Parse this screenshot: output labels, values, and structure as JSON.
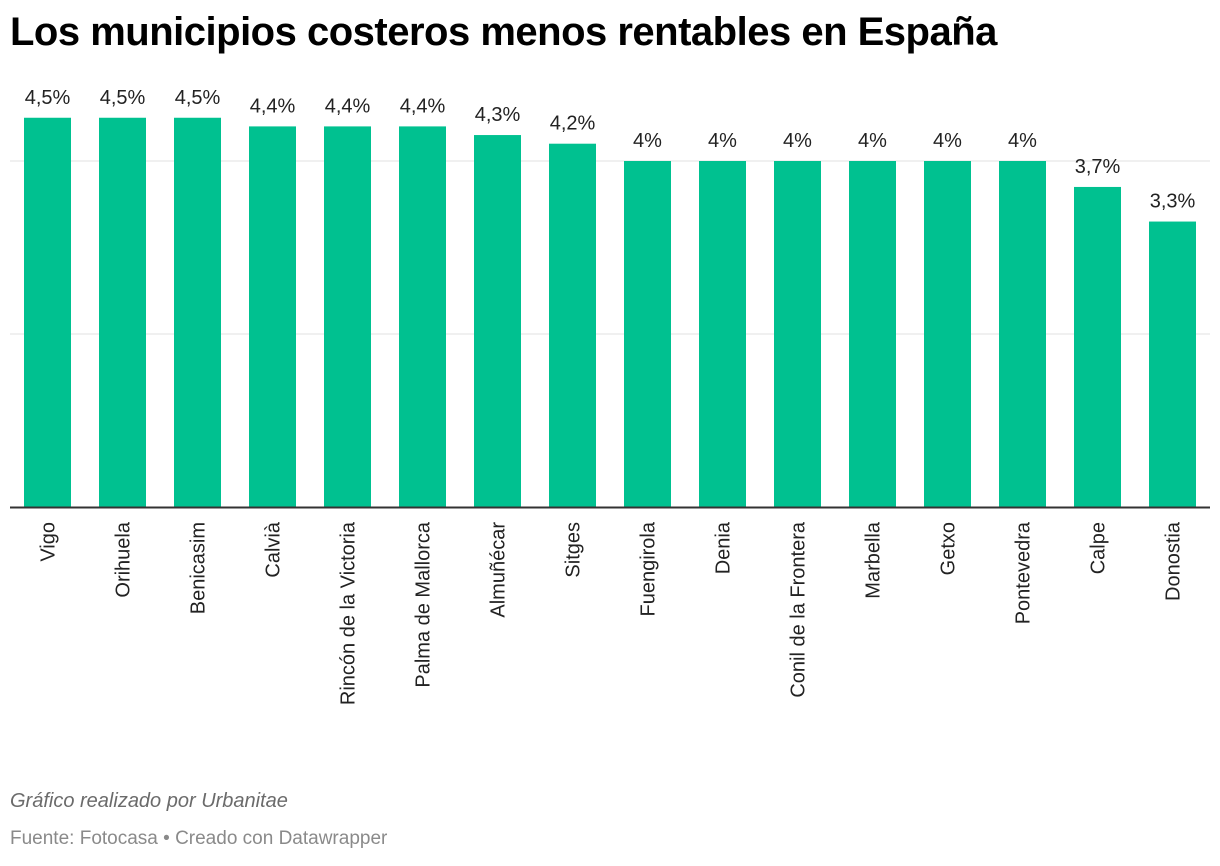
{
  "header": {
    "title": "Los municipios costeros menos rentables en España"
  },
  "chart_data": {
    "type": "bar",
    "categories": [
      "Vigo",
      "Orihuela",
      "Benicasim",
      "Calvià",
      "Rincón de la Victoria",
      "Palma de Mallorca",
      "Almuñécar",
      "Sitges",
      "Fuengirola",
      "Denia",
      "Conil de la Frontera",
      "Marbella",
      "Getxo",
      "Pontevedra",
      "Calpe",
      "Donostia"
    ],
    "values": [
      4.5,
      4.5,
      4.5,
      4.4,
      4.4,
      4.4,
      4.3,
      4.2,
      4.0,
      4.0,
      4.0,
      4.0,
      4.0,
      4.0,
      3.7,
      3.3
    ],
    "data_labels": [
      "4,5%",
      "4,5%",
      "4,5%",
      "4,4%",
      "4,4%",
      "4,4%",
      "4,3%",
      "4,2%",
      "4%",
      "4%",
      "4%",
      "4%",
      "4%",
      "4%",
      "3,7%",
      "3,3%"
    ],
    "ylim": [
      0,
      4
    ],
    "gridlines": [
      0,
      2,
      4
    ],
    "grid": true,
    "bar_color": "#00c190"
  },
  "footer": {
    "note": "Gráfico realizado por Urbanitae",
    "source": "Fuente: Fotocasa • Creado con Datawrapper"
  }
}
